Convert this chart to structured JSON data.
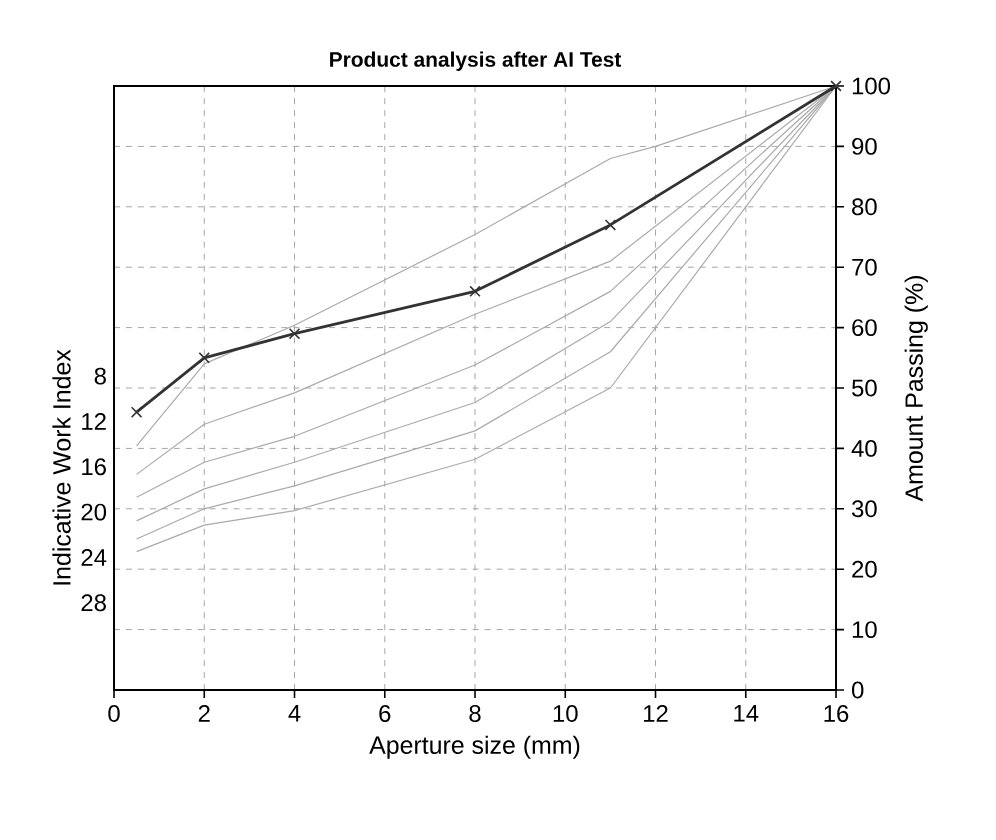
{
  "chart_data": {
    "type": "line",
    "title": "Product analysis after AI Test",
    "xlabel": "Aperture size (mm)",
    "ylabel": "Amount Passing (%)",
    "y2label": "Indicative Work Index",
    "xlim": [
      0,
      16
    ],
    "xticks": [
      0,
      2,
      4,
      6,
      8,
      10,
      12,
      14,
      16
    ],
    "ylim": [
      0,
      100
    ],
    "yticks": [
      0,
      10,
      20,
      30,
      40,
      50,
      60,
      70,
      80,
      90,
      100
    ],
    "y2lim": [
      35.7,
      -17.6
    ],
    "y2ticks": [
      8,
      12,
      16,
      20,
      24,
      28
    ],
    "grid": true,
    "line_style": "solid",
    "series": [
      {
        "color": "#aaaaaa",
        "marker": "none",
        "x": [
          0.5,
          2,
          4,
          8,
          11,
          12,
          16
        ],
        "values": [
          40.4,
          54,
          60.4,
          75.4,
          88,
          90,
          100
        ]
      },
      {
        "color": "#aaaaaa",
        "marker": "none",
        "x": [
          0.5,
          2,
          4,
          8,
          11,
          16
        ],
        "values": [
          35.7,
          44,
          49.2,
          62.2,
          71,
          100
        ]
      },
      {
        "color": "#aaaaaa",
        "marker": "none",
        "x": [
          0.5,
          2,
          4,
          8,
          11,
          16
        ],
        "values": [
          31.9,
          37.7,
          42,
          53.8,
          66,
          100
        ]
      },
      {
        "color": "#aaaaaa",
        "marker": "none",
        "x": [
          0.5,
          2,
          4,
          8,
          11,
          16
        ],
        "values": [
          28,
          33.3,
          37.7,
          47.6,
          61,
          100
        ]
      },
      {
        "color": "#aaaaaa",
        "marker": "none",
        "x": [
          0.5,
          2,
          4,
          8,
          11,
          16
        ],
        "values": [
          25,
          30,
          33.8,
          42.9,
          56,
          100
        ]
      },
      {
        "color": "#aaaaaa",
        "marker": "none",
        "x": [
          0.5,
          2,
          4,
          8,
          11,
          16
        ],
        "values": [
          22.9,
          27.3,
          29.7,
          38.2,
          50,
          100
        ]
      },
      {
        "color": "#333333",
        "marker": "cross",
        "x": [
          0.5,
          2,
          4,
          8,
          11,
          16
        ],
        "values": [
          46,
          55,
          59,
          66,
          77,
          100
        ]
      }
    ]
  }
}
